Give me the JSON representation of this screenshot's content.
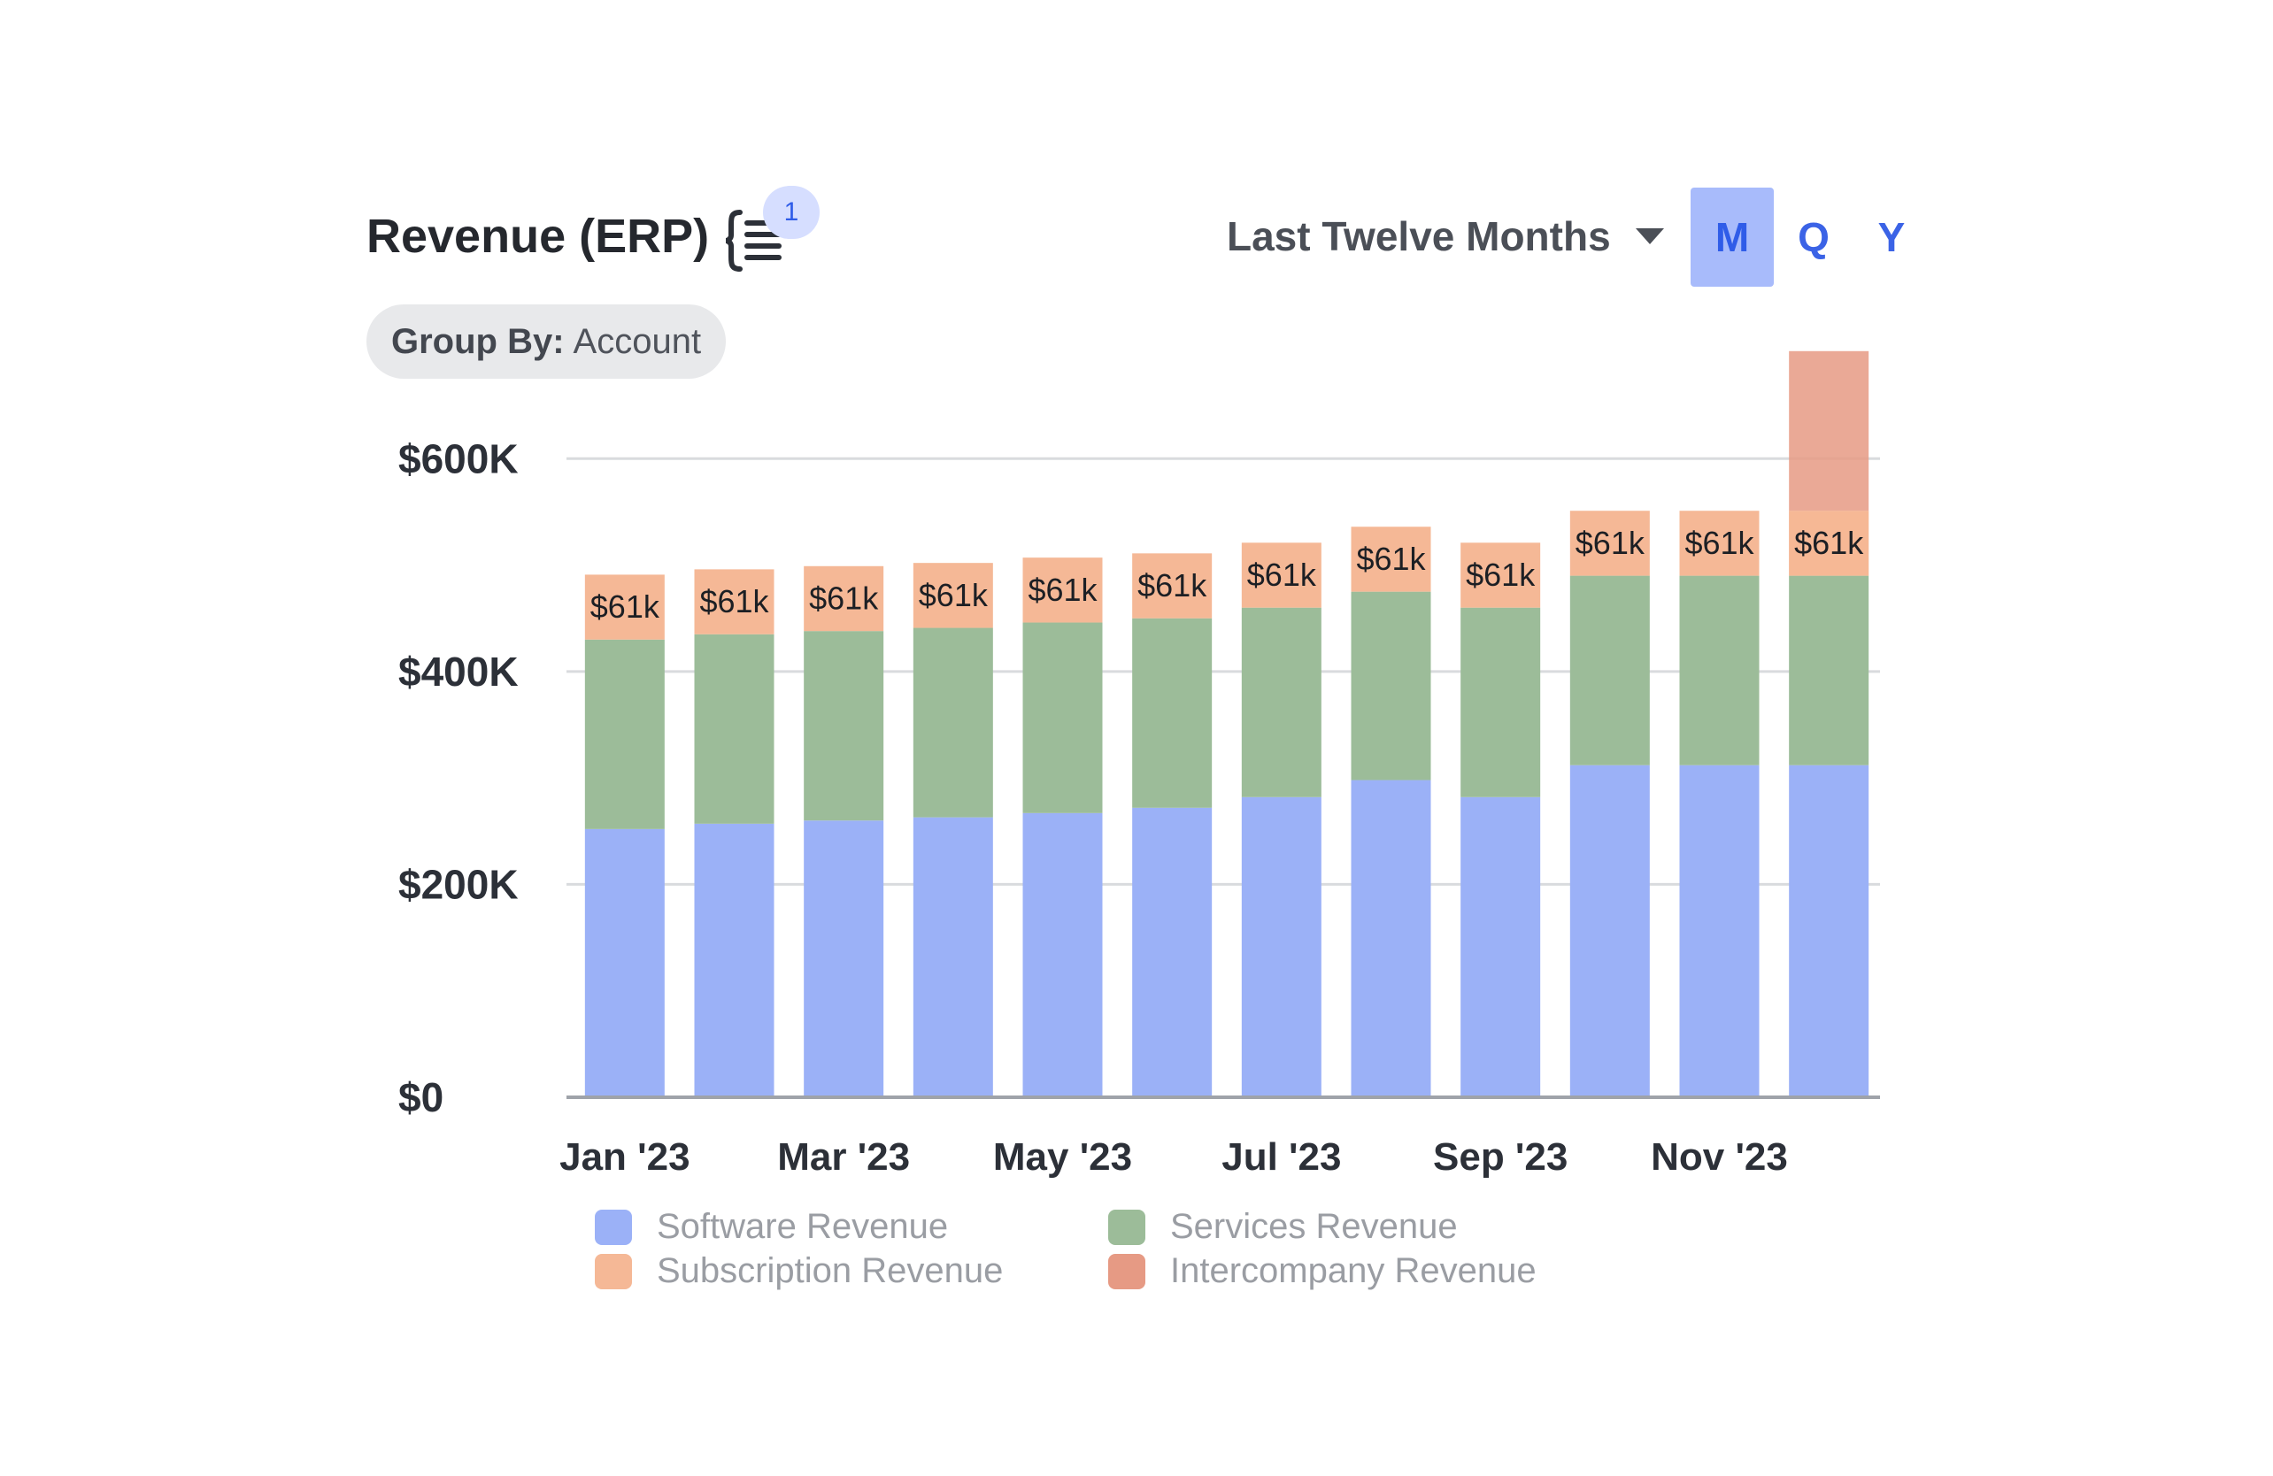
{
  "header": {
    "title": "Revenue (ERP)",
    "notes_icon": "notes-list-icon",
    "notes_badge": "1",
    "period_selector": "Last Twelve Months",
    "period_caret_icon": "caret-down-icon",
    "granularity": [
      {
        "label": "M",
        "active": true
      },
      {
        "label": "Q",
        "active": false
      },
      {
        "label": "Y",
        "active": false
      }
    ]
  },
  "group_by": {
    "label": "Group By:",
    "value": "Account"
  },
  "colors": {
    "software": "#9bb1f7",
    "services": "#9cbc99",
    "subscription": "#f5b896",
    "intercompany": "#e69a84",
    "grid": "#d9dbde",
    "axis": "#9fa3aa"
  },
  "chart_data": {
    "type": "bar",
    "stacked": true,
    "categories": [
      "Jan '23",
      "Feb '23",
      "Mar '23",
      "Apr '23",
      "May '23",
      "Jun '23",
      "Jul '23",
      "Aug '23",
      "Sep '23",
      "Oct '23",
      "Nov '23",
      "Dec '23"
    ],
    "x_tick_labels": [
      "Jan '23",
      "Mar '23",
      "May '23",
      "Jul '23",
      "Sep '23",
      "Nov '23"
    ],
    "series": [
      {
        "name": "Software Revenue",
        "color": "#9bb1f7",
        "values": [
          252000,
          257000,
          260000,
          263000,
          267000,
          272000,
          282000,
          298000,
          282000,
          312000,
          312000,
          312000
        ]
      },
      {
        "name": "Services Revenue",
        "color": "#9cbc99",
        "values": [
          178000,
          178000,
          178000,
          178000,
          179000,
          178000,
          178000,
          177000,
          178000,
          178000,
          178000,
          178000
        ]
      },
      {
        "name": "Subscription Revenue",
        "color": "#f5b896",
        "values": [
          61000,
          61000,
          61000,
          61000,
          61000,
          61000,
          61000,
          61000,
          61000,
          61000,
          61000,
          61000
        ],
        "data_labels": [
          "$61k",
          "$61k",
          "$61k",
          "$61k",
          "$61k",
          "$61k",
          "$61k",
          "$61k",
          "$61k",
          "$61k",
          "$61k",
          "$61k"
        ]
      },
      {
        "name": "Intercompany Revenue",
        "color": "#e69a84",
        "values": [
          0,
          0,
          0,
          0,
          0,
          0,
          0,
          0,
          0,
          0,
          0,
          150000
        ]
      }
    ],
    "y_tick_labels": [
      "$0",
      "$200K",
      "$400K",
      "$600K"
    ],
    "y_ticks": [
      0,
      200000,
      400000,
      600000
    ],
    "ylim": [
      0,
      700000
    ],
    "grid": true,
    "legend_position": "bottom"
  }
}
